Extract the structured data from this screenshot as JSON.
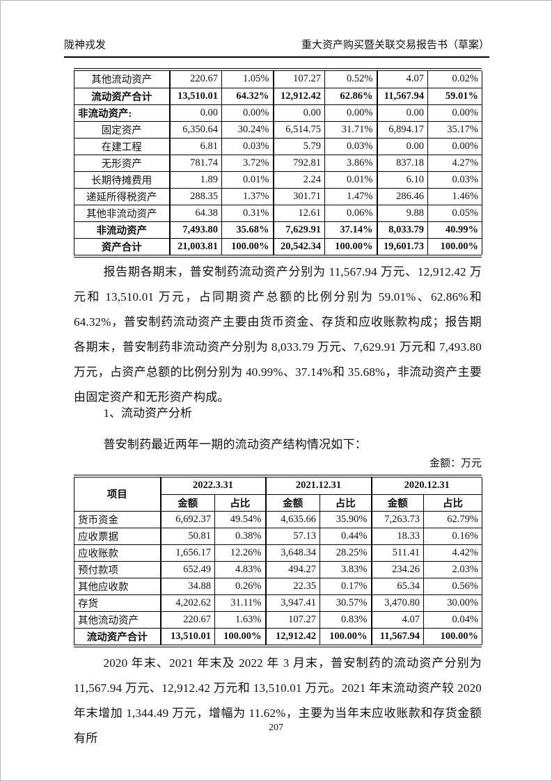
{
  "header": {
    "left": "陇神戎发",
    "right": "重大资产购买暨关联交易报告书（草案）"
  },
  "asset_table": {
    "rows": [
      {
        "label": "其他流动资产",
        "values": [
          "220.67",
          "1.05%",
          "107.27",
          "0.52%",
          "4.07",
          "0.02%"
        ]
      },
      {
        "label": "流动资产合计",
        "bold": true,
        "label_bold": true,
        "values": [
          "13,510.01",
          "64.32%",
          "12,912.42",
          "62.86%",
          "11,567.94",
          "59.01%"
        ]
      },
      {
        "label": "非流动资产:",
        "label_bold": true,
        "align": "left",
        "values": [
          "0.00",
          "0.00%",
          "0.00",
          "0.00%",
          "0.00",
          "0.00%"
        ]
      },
      {
        "label": "固定资产",
        "values": [
          "6,350.64",
          "30.24%",
          "6,514.75",
          "31.71%",
          "6,894.17",
          "35.17%"
        ]
      },
      {
        "label": "在建工程",
        "values": [
          "6.81",
          "0.03%",
          "5.79",
          "0.03%",
          "0.00",
          "0.00%"
        ]
      },
      {
        "label": "无形资产",
        "values": [
          "781.74",
          "3.72%",
          "792.81",
          "3.86%",
          "837.18",
          "4.27%"
        ]
      },
      {
        "label": "长期待摊费用",
        "values": [
          "1.89",
          "0.01%",
          "2.24",
          "0.01%",
          "6.10",
          "0.03%"
        ]
      },
      {
        "label": "递延所得税资产",
        "values": [
          "288.35",
          "1.37%",
          "301.71",
          "1.47%",
          "286.46",
          "1.46%"
        ]
      },
      {
        "label": "其他非流动资产",
        "values": [
          "64.38",
          "0.31%",
          "12.61",
          "0.06%",
          "9.88",
          "0.05%"
        ]
      },
      {
        "label": "非流动资产",
        "bold": true,
        "label_bold": true,
        "values": [
          "7,493.80",
          "35.68%",
          "7,629.91",
          "37.14%",
          "8,033.79",
          "40.99%"
        ]
      },
      {
        "label": "资产合计",
        "bold": true,
        "label_bold": true,
        "values": [
          "21,003.81",
          "100.00%",
          "20,542.34",
          "100.00%",
          "19,601.73",
          "100.00%"
        ]
      }
    ]
  },
  "paragraph_1": "报告期各期末，普安制药流动资产分别为 11,567.94 万元、12,912.42 万元和 13,510.01 万元，占同期资产总额的比例分别为 59.01%、62.86%和 64.32%，普安制药流动资产主要由货币资金、存货和应收账款构成；报告期各期末，普安制药非流动资产分别为 8,033.79 万元、7,629.91 万元和 7,493.80 万元，占资产总额的比例分别为 40.99%、37.14%和 35.68%，非流动资产主要由固定资产和无形资产构成。",
  "section_heading": "1、流动资产分析",
  "table_intro": "普安制药最近两年一期的流动资产结构情况如下：",
  "unit_note": "金额：万元",
  "current_assets_table": {
    "item_header": "项目",
    "period_headers": [
      "2022.3.31",
      "2021.12.31",
      "2020.12.31"
    ],
    "sub_headers": [
      "金额",
      "占比"
    ],
    "rows": [
      {
        "label": "货币资金",
        "values": [
          "6,692.37",
          "49.54%",
          "4,635.66",
          "35.90%",
          "7,263.73",
          "62.79%"
        ]
      },
      {
        "label": "应收票据",
        "values": [
          "50.81",
          "0.38%",
          "57.13",
          "0.44%",
          "18.33",
          "0.16%"
        ]
      },
      {
        "label": "应收账款",
        "values": [
          "1,656.17",
          "12.26%",
          "3,648.34",
          "28.25%",
          "511.41",
          "4.42%"
        ]
      },
      {
        "label": "预付款项",
        "values": [
          "652.49",
          "4.83%",
          "494.27",
          "3.83%",
          "234.26",
          "2.03%"
        ]
      },
      {
        "label": "其他应收款",
        "values": [
          "34.88",
          "0.26%",
          "22.35",
          "0.17%",
          "65.34",
          "0.56%"
        ]
      },
      {
        "label": "存货",
        "values": [
          "4,202.62",
          "31.11%",
          "3,947.41",
          "30.57%",
          "3,470.80",
          "30.00%"
        ]
      },
      {
        "label": "其他流动资产",
        "values": [
          "220.67",
          "1.63%",
          "107.27",
          "0.83%",
          "4.07",
          "0.04%"
        ]
      },
      {
        "label": "流动资产合计",
        "bold": true,
        "label_bold": true,
        "align": "center",
        "values": [
          "13,510.01",
          "100.00%",
          "12,912.42",
          "100.00%",
          "11,567.94",
          "100.00%"
        ]
      }
    ]
  },
  "paragraph_2": "2020 年末、2021 年末及 2022 年 3 月末，普安制药的流动资产分别为 11,567.94 万元、12,912.42 万元和 13,510.01 万元。2021 年末流动资产较 2020 年末增加 1,344.49 万元，增幅为 11.62%，主要为当年末应收账款和存货金额有所",
  "page_number": "207"
}
